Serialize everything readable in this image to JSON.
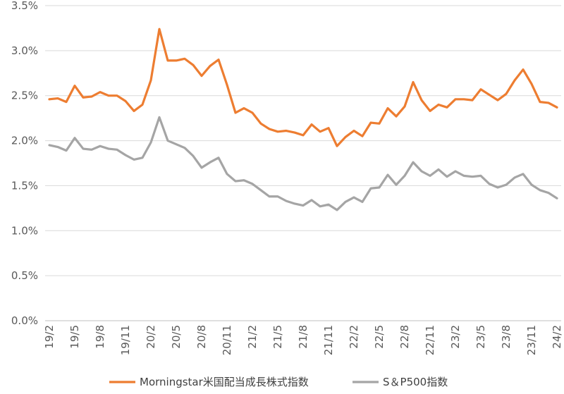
{
  "chart_data": {
    "type": "line",
    "ylim": [
      0,
      3.5
    ],
    "y_ticks": [
      "0.0%",
      "0.5%",
      "1.0%",
      "1.5%",
      "2.0%",
      "2.5%",
      "3.0%",
      "3.5%"
    ],
    "x_tick_labels": [
      "19/2",
      "19/5",
      "19/8",
      "19/11",
      "20/2",
      "20/5",
      "20/8",
      "20/11",
      "21/2",
      "21/5",
      "21/8",
      "21/11",
      "22/2",
      "22/5",
      "22/8",
      "22/11",
      "23/2",
      "23/5",
      "23/8",
      "23/11",
      "24/2"
    ],
    "x_start": "2019-02",
    "x_end": "2024-02",
    "grid": true,
    "legend": "bottom",
    "series": [
      {
        "name": "Morningstar米国配当成長株式指数",
        "color": "#ED7D31",
        "values": [
          2.46,
          2.47,
          2.43,
          2.61,
          2.48,
          2.49,
          2.54,
          2.5,
          2.5,
          2.44,
          2.33,
          2.4,
          2.67,
          3.24,
          2.89,
          2.89,
          2.91,
          2.84,
          2.72,
          2.83,
          2.9,
          2.62,
          2.31,
          2.36,
          2.31,
          2.19,
          2.13,
          2.1,
          2.11,
          2.09,
          2.06,
          2.18,
          2.1,
          2.14,
          1.94,
          2.04,
          2.11,
          2.05,
          2.2,
          2.19,
          2.36,
          2.27,
          2.38,
          2.65,
          2.45,
          2.33,
          2.4,
          2.37,
          2.46,
          2.46,
          2.45,
          2.57,
          2.51,
          2.45,
          2.52,
          2.67,
          2.79,
          2.63,
          2.43,
          2.42,
          2.37
        ]
      },
      {
        "name": "S＆P500指数",
        "color": "#A5A5A5",
        "values": [
          1.95,
          1.93,
          1.89,
          2.03,
          1.91,
          1.9,
          1.94,
          1.91,
          1.9,
          1.84,
          1.79,
          1.81,
          1.98,
          2.26,
          2.0,
          1.96,
          1.92,
          1.83,
          1.7,
          1.76,
          1.81,
          1.63,
          1.55,
          1.56,
          1.52,
          1.45,
          1.38,
          1.38,
          1.33,
          1.3,
          1.28,
          1.34,
          1.27,
          1.29,
          1.23,
          1.32,
          1.37,
          1.32,
          1.47,
          1.48,
          1.62,
          1.51,
          1.61,
          1.76,
          1.66,
          1.61,
          1.68,
          1.6,
          1.66,
          1.61,
          1.6,
          1.61,
          1.52,
          1.48,
          1.51,
          1.59,
          1.63,
          1.51,
          1.45,
          1.42,
          1.36
        ]
      }
    ]
  }
}
